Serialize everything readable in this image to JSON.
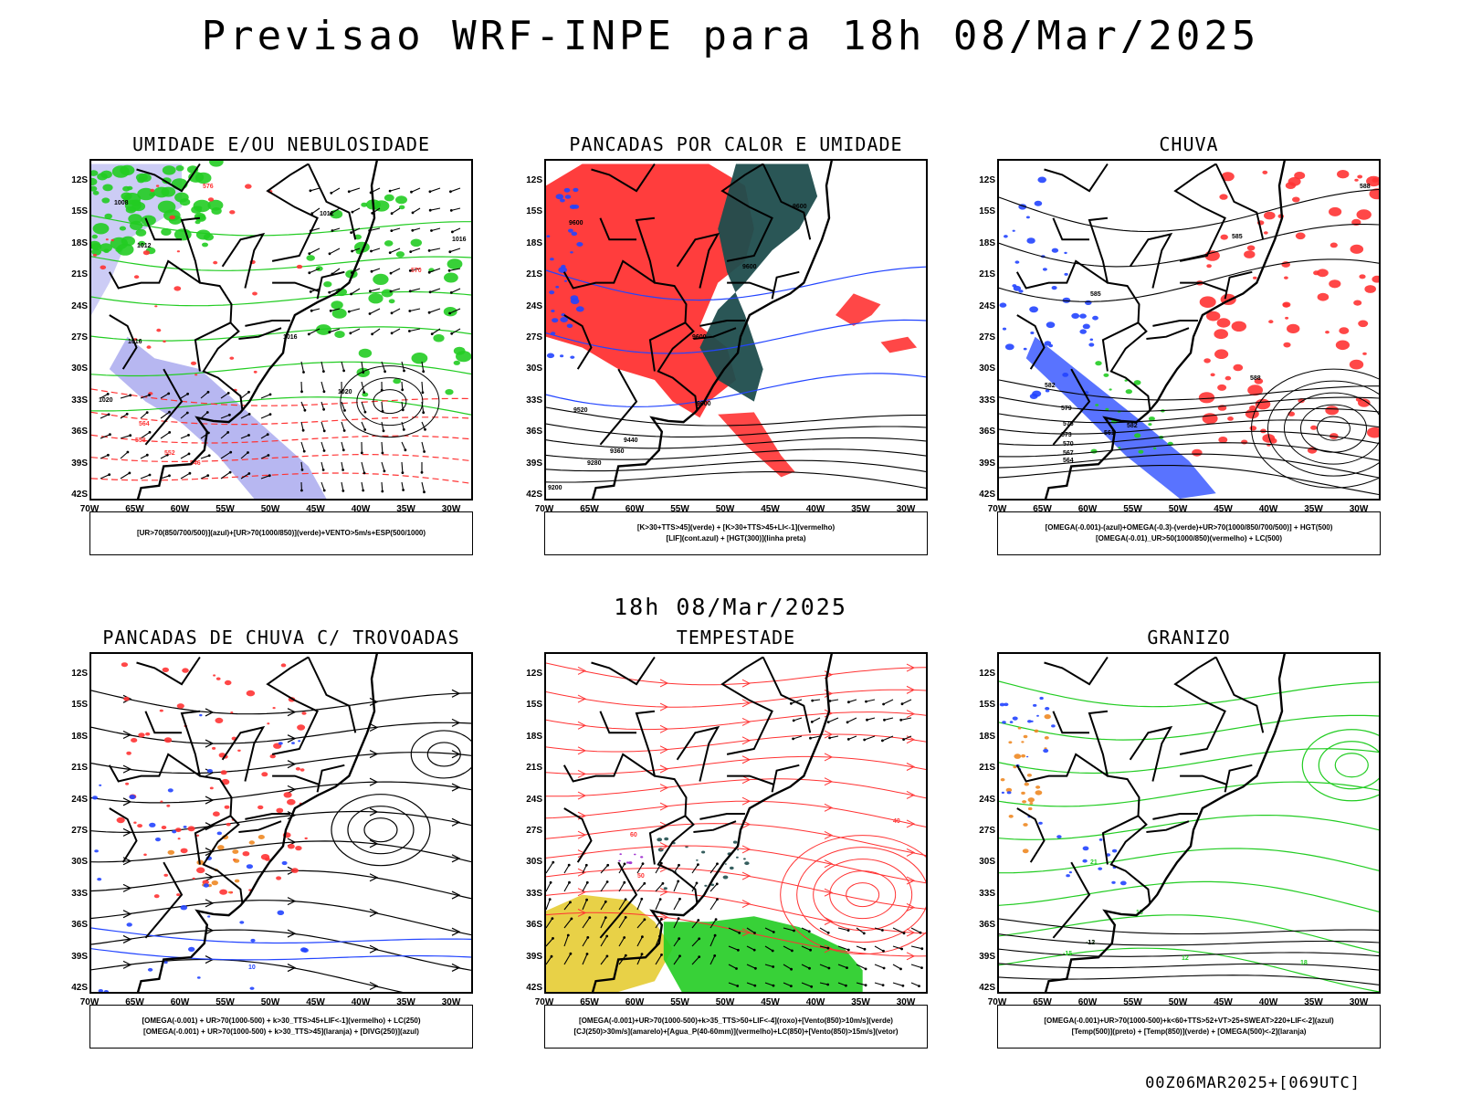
{
  "title": "Previsao WRF-INPE  para 18h 08/Mar/2025",
  "middle_title": "18h 08/Mar/2025",
  "footer": "00Z06MAR2025+[069UTC]",
  "colors": {
    "black": "#000000",
    "red": "#ff3333",
    "green": "#22cc22",
    "blue": "#2244ff",
    "lavender": "#aaaaee",
    "darkteal": "#1f4d4d",
    "yellow": "#e6cc33",
    "orange": "#ee8822",
    "purple": "#9922cc"
  },
  "chart_data": [
    {
      "type": "map",
      "title": "UMIDADE E/OU NEBULOSIDADE",
      "legend": [
        "[UR>70(850/700/500)](azul)+[UR>70(1000/850)](verde)+VENTO>5m/s+ESP(500/1000)"
      ],
      "lat_ticks": [
        "12S",
        "15S",
        "18S",
        "21S",
        "24S",
        "27S",
        "30S",
        "33S",
        "36S",
        "39S",
        "42S"
      ],
      "lon_ticks": [
        "70W",
        "65W",
        "60W",
        "55W",
        "50W",
        "45W",
        "40W",
        "35W",
        "30W"
      ],
      "contour_labels": [
        "1008",
        "1012",
        "1016",
        "1020",
        "570",
        "576",
        "564",
        "558",
        "552",
        "546"
      ]
    },
    {
      "type": "map",
      "title": "PANCADAS POR CALOR E UMIDADE",
      "legend": [
        "[K>30+TTS>45](verde) + [K>30+TTS>45+LI<-1](vermelho)",
        "[LIF](cont.azul) + [HGT(300)](linha preta)"
      ],
      "lat_ticks": [
        "12S",
        "15S",
        "18S",
        "21S",
        "24S",
        "27S",
        "30S",
        "33S",
        "36S",
        "39S",
        "42S"
      ],
      "lon_ticks": [
        "70W",
        "65W",
        "60W",
        "55W",
        "50W",
        "45W",
        "40W",
        "35W",
        "30W"
      ],
      "contour_labels": [
        "9600",
        "9520",
        "9440",
        "9360",
        "9280",
        "9200"
      ]
    },
    {
      "type": "map",
      "title": "CHUVA",
      "legend": [
        "[OMEGA(-0.001)-(azul)+OMEGA(-0.3)-(verde)+UR>70(1000/850/700/500)] + HGT(500)",
        "[OMEGA(-0.01)_UR>50(1000/850)(vermelho) + LC(500)"
      ],
      "lat_ticks": [
        "12S",
        "15S",
        "18S",
        "21S",
        "24S",
        "27S",
        "30S",
        "33S",
        "36S",
        "39S",
        "42S"
      ],
      "lon_ticks": [
        "70W",
        "65W",
        "60W",
        "55W",
        "50W",
        "45W",
        "40W",
        "35W",
        "30W"
      ],
      "contour_labels": [
        "588",
        "582",
        "576",
        "570",
        "567",
        "564",
        "561",
        "558"
      ]
    },
    {
      "type": "map",
      "title": "PANCADAS DE CHUVA C/ TROVOADAS",
      "legend": [
        "[OMEGA(-0.001) + UR>70(1000-500) + k>30_TTS>45+LIF<-1](vermelho) + LC(250)",
        "[OMEGA(-0.001) + UR>70(1000-500) + k>30_TTS>45](laranja) + [DIVG(250)](azul)"
      ],
      "lat_ticks": [
        "12S",
        "15S",
        "18S",
        "21S",
        "24S",
        "27S",
        "30S",
        "33S",
        "36S",
        "39S",
        "42S"
      ],
      "lon_ticks": [
        "70W",
        "65W",
        "60W",
        "55W",
        "50W",
        "45W",
        "40W",
        "35W",
        "30W"
      ],
      "contour_labels": [
        "10"
      ]
    },
    {
      "type": "map",
      "title": "TEMPESTADE",
      "legend": [
        "[OMEGA(-0.001)+UR>70(1000-500)+k>35_TTS>50+LIF<-4](roxo)+[Vento(850)>10m/s](verde)",
        "[CJ(250)>30m/s](amarelo)+[Agua_P(40-60mm)](vermelho)+LC(850)+[Vento(850)>15m/s](vetor)"
      ],
      "lat_ticks": [
        "12S",
        "15S",
        "18S",
        "21S",
        "24S",
        "27S",
        "30S",
        "33S",
        "36S",
        "39S",
        "42S"
      ],
      "lon_ticks": [
        "70W",
        "65W",
        "60W",
        "55W",
        "50W",
        "45W",
        "40W",
        "35W",
        "30W"
      ],
      "contour_labels": [
        "40",
        "50",
        "60"
      ]
    },
    {
      "type": "map",
      "title": "GRANIZO",
      "legend": [
        "[OMEGA(-0.001)+UR>70(1000-500)+k<60+TTS>52+VT>25+SWEAT>220+LIF<-2](azul)",
        "[Temp(500)](preto) + [Temp(850)](verde) + [OMEGA(500)<-2](laranja)"
      ],
      "lat_ticks": [
        "12S",
        "15S",
        "18S",
        "21S",
        "24S",
        "27S",
        "30S",
        "33S",
        "36S",
        "39S",
        "42S"
      ],
      "lon_ticks": [
        "70W",
        "65W",
        "60W",
        "55W",
        "50W",
        "45W",
        "40W",
        "35W",
        "30W"
      ],
      "contour_labels": [
        "-12",
        "-15",
        "12",
        "15",
        "18",
        "21"
      ]
    }
  ]
}
